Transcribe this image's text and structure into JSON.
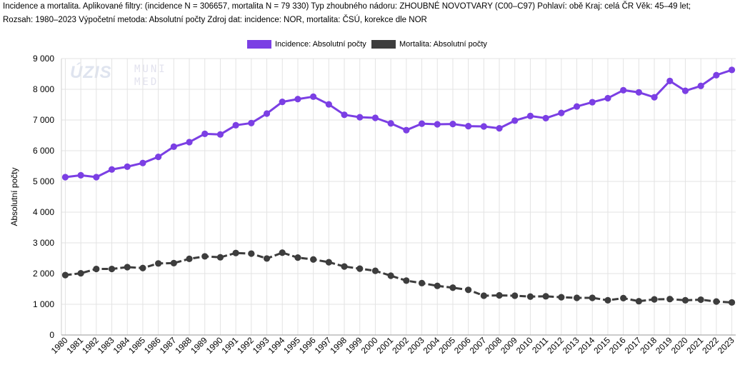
{
  "header": {
    "line1": "Incidence a mortalita. Aplikované filtry: (incidence N = 306657, mortalita N = 79 330) Typ zhoubného nádoru: ZHOUBNÉ NOVOTVARY (C00–C97) Pohlaví: obě Kraj: celá ČR Věk: 45–49 let;",
    "line2": "Rozsah: 1980–2023 Výpočetní metoda: Absolutní počty Zdroj dat: incidence: NOR, mortalita: ČSÚ, korekce dle NOR"
  },
  "watermark": {
    "logo": "ÚZIS",
    "text1": "MUNI",
    "text2": "MED"
  },
  "chart_data": {
    "type": "line",
    "ylabel": "Absolutní počty",
    "xlabel": "",
    "ylim": [
      0,
      9000
    ],
    "yticks": [
      0,
      1000,
      2000,
      3000,
      4000,
      5000,
      6000,
      7000,
      8000,
      9000
    ],
    "ytick_labels": [
      "0",
      "1 000",
      "2 000",
      "3 000",
      "4 000",
      "5 000",
      "6 000",
      "7 000",
      "8 000",
      "9 000"
    ],
    "grid": true,
    "legend_position": "top-center",
    "categories": [
      "1980",
      "1981",
      "1982",
      "1983",
      "1984",
      "1985",
      "1986",
      "1987",
      "1988",
      "1989",
      "1990",
      "1991",
      "1992",
      "1993",
      "1994",
      "1995",
      "1996",
      "1997",
      "1998",
      "1999",
      "2000",
      "2001",
      "2002",
      "2003",
      "2004",
      "2005",
      "2006",
      "2007",
      "2008",
      "2009",
      "2010",
      "2011",
      "2012",
      "2013",
      "2014",
      "2015",
      "2016",
      "2017",
      "2018",
      "2019",
      "2020",
      "2021",
      "2022",
      "2023"
    ],
    "series": [
      {
        "name": "Incidence: Absolutní počty",
        "color": "#7b3fe4",
        "dash": "solid",
        "values": [
          5140,
          5200,
          5140,
          5390,
          5480,
          5600,
          5800,
          6130,
          6280,
          6550,
          6530,
          6830,
          6900,
          7210,
          7590,
          7680,
          7760,
          7510,
          7170,
          7090,
          7070,
          6890,
          6670,
          6880,
          6860,
          6870,
          6800,
          6790,
          6730,
          6980,
          7130,
          7060,
          7230,
          7440,
          7580,
          7710,
          7970,
          7900,
          7740,
          8270,
          7950,
          8110,
          8460,
          8630
        ]
      },
      {
        "name": "Mortalita: Absolutní počty",
        "color": "#3d3d3d",
        "dash": "dashed",
        "values": [
          1950,
          2010,
          2150,
          2150,
          2210,
          2180,
          2330,
          2340,
          2480,
          2560,
          2530,
          2670,
          2650,
          2490,
          2680,
          2520,
          2460,
          2370,
          2230,
          2160,
          2090,
          1930,
          1770,
          1690,
          1600,
          1540,
          1470,
          1280,
          1290,
          1280,
          1250,
          1260,
          1230,
          1210,
          1210,
          1130,
          1200,
          1100,
          1160,
          1170,
          1130,
          1150,
          1090,
          1060
        ]
      }
    ]
  }
}
